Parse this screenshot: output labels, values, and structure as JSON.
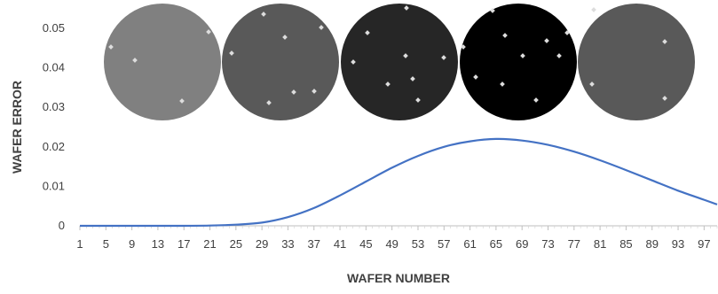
{
  "chart_data": {
    "type": "line",
    "title": "",
    "xlabel": "WAFER NUMBER",
    "ylabel": "WAFER ERROR",
    "xlim": [
      1,
      99
    ],
    "ylim": [
      0,
      0.05
    ],
    "x_tick_labels": [
      "1",
      "5",
      "9",
      "13",
      "17",
      "21",
      "25",
      "29",
      "33",
      "37",
      "41",
      "45",
      "49",
      "53",
      "57",
      "61",
      "65",
      "69",
      "73",
      "77",
      "81",
      "85",
      "89",
      "93",
      "97"
    ],
    "y_tick_labels": [
      "0",
      "0.01",
      "0.02",
      "0.03",
      "0.04",
      "0.05"
    ],
    "grid": false,
    "legend": "none",
    "series": [
      {
        "color": "#4472C4",
        "x": [
          1,
          5,
          9,
          13,
          17,
          21,
          25,
          29,
          33,
          37,
          41,
          45,
          49,
          53,
          57,
          61,
          65,
          69,
          73,
          77,
          81,
          85,
          89,
          93,
          97,
          99
        ],
        "y": [
          0,
          0,
          0,
          0,
          1e-05,
          7e-05,
          0.0003,
          0.0008,
          0.0022,
          0.0045,
          0.0077,
          0.0112,
          0.0147,
          0.0177,
          0.02,
          0.0214,
          0.022,
          0.0216,
          0.0205,
          0.0188,
          0.0166,
          0.0141,
          0.0115,
          0.0089,
          0.0066,
          0.0054
        ]
      }
    ],
    "wafer_images": [
      {
        "shade": "#808080",
        "dot_color": "#dddddd"
      },
      {
        "shade": "#595959",
        "dot_color": "#dddddd"
      },
      {
        "shade": "#262626",
        "dot_color": "#dddddd"
      },
      {
        "shade": "#000000",
        "dot_color": "#dddddd"
      },
      {
        "shade": "#595959",
        "dot_color": "#dddddd"
      }
    ]
  }
}
